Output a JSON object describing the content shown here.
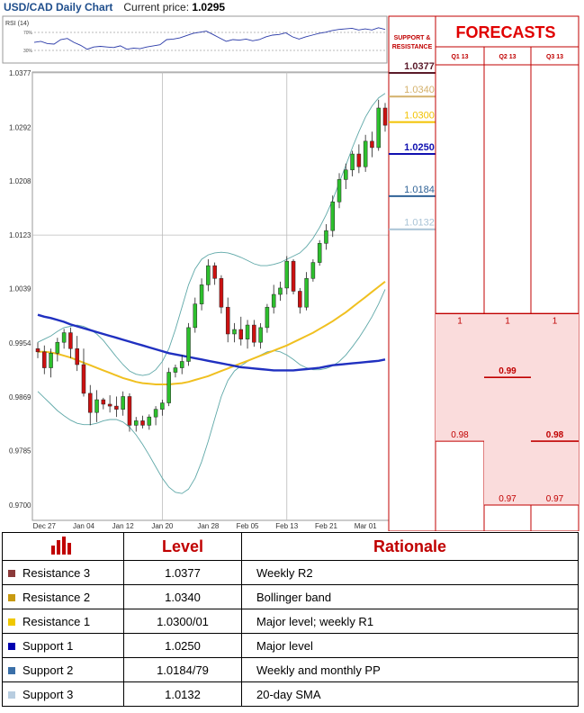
{
  "header": {
    "pair_title": "USD/CAD Daily Chart",
    "current_price_label": "Current price:",
    "current_price": "1.0295"
  },
  "chart_data": {
    "type": "candlestick",
    "title": "USD/CAD Daily Chart",
    "y_ticks": [
      "1.0377",
      "1.0292",
      "1.0208",
      "1.0123",
      "1.0039",
      "0.9954",
      "0.9869",
      "0.9785",
      "0.9700"
    ],
    "ylim": [
      0.97,
      1.0377
    ],
    "x_ticks": [
      "Dec 27",
      "Jan 04",
      "Jan 12",
      "Jan 20",
      "Jan 28",
      "Feb 05",
      "Feb 13",
      "Feb 21",
      "Mar 01"
    ],
    "grid": true,
    "candles": [
      {
        "o": 0.9945,
        "h": 0.9955,
        "l": 0.993,
        "c": 0.994
      },
      {
        "o": 0.994,
        "h": 0.995,
        "l": 0.9905,
        "c": 0.9915
      },
      {
        "o": 0.9915,
        "h": 0.9945,
        "l": 0.99,
        "c": 0.9938
      },
      {
        "o": 0.9938,
        "h": 0.9962,
        "l": 0.9925,
        "c": 0.9955
      },
      {
        "o": 0.9955,
        "h": 0.9976,
        "l": 0.9945,
        "c": 0.997
      },
      {
        "o": 0.997,
        "h": 0.9978,
        "l": 0.993,
        "c": 0.9945
      },
      {
        "o": 0.9945,
        "h": 0.9965,
        "l": 0.991,
        "c": 0.992
      },
      {
        "o": 0.992,
        "h": 0.9945,
        "l": 0.987,
        "c": 0.9875
      },
      {
        "o": 0.9875,
        "h": 0.9888,
        "l": 0.9825,
        "c": 0.9845
      },
      {
        "o": 0.9845,
        "h": 0.988,
        "l": 0.983,
        "c": 0.9865
      },
      {
        "o": 0.9865,
        "h": 0.9868,
        "l": 0.985,
        "c": 0.9858
      },
      {
        "o": 0.9858,
        "h": 0.9872,
        "l": 0.9845,
        "c": 0.9855
      },
      {
        "o": 0.9855,
        "h": 0.987,
        "l": 0.9838,
        "c": 0.985
      },
      {
        "o": 0.985,
        "h": 0.9878,
        "l": 0.984,
        "c": 0.987
      },
      {
        "o": 0.987,
        "h": 0.9875,
        "l": 0.9815,
        "c": 0.9825
      },
      {
        "o": 0.9825,
        "h": 0.9838,
        "l": 0.9815,
        "c": 0.9832
      },
      {
        "o": 0.9832,
        "h": 0.984,
        "l": 0.982,
        "c": 0.9825
      },
      {
        "o": 0.9825,
        "h": 0.9842,
        "l": 0.9818,
        "c": 0.9838
      },
      {
        "o": 0.9838,
        "h": 0.9855,
        "l": 0.9825,
        "c": 0.985
      },
      {
        "o": 0.985,
        "h": 0.9865,
        "l": 0.984,
        "c": 0.986
      },
      {
        "o": 0.986,
        "h": 0.9915,
        "l": 0.9855,
        "c": 0.9908
      },
      {
        "o": 0.9908,
        "h": 0.992,
        "l": 0.99,
        "c": 0.9915
      },
      {
        "o": 0.9915,
        "h": 0.9935,
        "l": 0.9905,
        "c": 0.9925
      },
      {
        "o": 0.9925,
        "h": 0.9985,
        "l": 0.9918,
        "c": 0.9978
      },
      {
        "o": 0.9978,
        "h": 1.0025,
        "l": 0.997,
        "c": 1.0015
      },
      {
        "o": 1.0015,
        "h": 1.0055,
        "l": 1.0005,
        "c": 1.0045
      },
      {
        "o": 1.0045,
        "h": 1.0085,
        "l": 1.0035,
        "c": 1.0075
      },
      {
        "o": 1.0075,
        "h": 1.008,
        "l": 1.0045,
        "c": 1.0055
      },
      {
        "o": 1.0055,
        "h": 1.006,
        "l": 1.0,
        "c": 1.001
      },
      {
        "o": 1.001,
        "h": 1.0025,
        "l": 0.9955,
        "c": 0.9968
      },
      {
        "o": 0.9968,
        "h": 0.9985,
        "l": 0.9955,
        "c": 0.9975
      },
      {
        "o": 0.9975,
        "h": 0.9995,
        "l": 0.995,
        "c": 0.996
      },
      {
        "o": 0.996,
        "h": 0.999,
        "l": 0.9945,
        "c": 0.9982
      },
      {
        "o": 0.9982,
        "h": 0.999,
        "l": 0.9948,
        "c": 0.9955
      },
      {
        "o": 0.9955,
        "h": 0.9985,
        "l": 0.9945,
        "c": 0.9978
      },
      {
        "o": 0.9978,
        "h": 1.0015,
        "l": 0.997,
        "c": 1.001
      },
      {
        "o": 1.001,
        "h": 1.0045,
        "l": 1.0,
        "c": 1.003
      },
      {
        "o": 1.003,
        "h": 1.005,
        "l": 1.002,
        "c": 1.004
      },
      {
        "o": 1.004,
        "h": 1.009,
        "l": 1.003,
        "c": 1.0082
      },
      {
        "o": 1.0082,
        "h": 1.0085,
        "l": 1.003,
        "c": 1.0035
      },
      {
        "o": 1.0035,
        "h": 1.004,
        "l": 1.0,
        "c": 1.001
      },
      {
        "o": 1.001,
        "h": 1.0065,
        "l": 1.0005,
        "c": 1.0055
      },
      {
        "o": 1.0055,
        "h": 1.0085,
        "l": 1.005,
        "c": 1.008
      },
      {
        "o": 1.008,
        "h": 1.0115,
        "l": 1.0075,
        "c": 1.011
      },
      {
        "o": 1.011,
        "h": 1.014,
        "l": 1.01,
        "c": 1.013
      },
      {
        "o": 1.013,
        "h": 1.0185,
        "l": 1.012,
        "c": 1.0175
      },
      {
        "o": 1.0175,
        "h": 1.022,
        "l": 1.0165,
        "c": 1.021
      },
      {
        "o": 1.021,
        "h": 1.0235,
        "l": 1.0195,
        "c": 1.0225
      },
      {
        "o": 1.0225,
        "h": 1.0255,
        "l": 1.0215,
        "c": 1.025
      },
      {
        "o": 1.025,
        "h": 1.0265,
        "l": 1.022,
        "c": 1.023
      },
      {
        "o": 1.023,
        "h": 1.028,
        "l": 1.0222,
        "c": 1.027
      },
      {
        "o": 1.027,
        "h": 1.0285,
        "l": 1.0245,
        "c": 1.026
      },
      {
        "o": 1.026,
        "h": 1.0335,
        "l": 1.0255,
        "c": 1.0322
      },
      {
        "o": 1.0322,
        "h": 1.033,
        "l": 1.0285,
        "c": 1.0295
      }
    ],
    "sma_long": [
      0.9998,
      0.9995,
      0.9993,
      0.999,
      0.9987,
      0.9983,
      0.998,
      0.9977,
      0.9974,
      0.9971,
      0.9968,
      0.9965,
      0.9962,
      0.9959,
      0.9956,
      0.9953,
      0.995,
      0.9947,
      0.9944,
      0.9941,
      0.9938,
      0.9936,
      0.9934,
      0.9932,
      0.993,
      0.9928,
      0.9926,
      0.9924,
      0.9922,
      0.992,
      0.9918,
      0.9916,
      0.9915,
      0.9914,
      0.9913,
      0.9912,
      0.9911,
      0.9911,
      0.9911,
      0.9911,
      0.9912,
      0.9913,
      0.9914,
      0.9915,
      0.9917,
      0.9919,
      0.992,
      0.9921,
      0.9922,
      0.9923,
      0.9924,
      0.9925,
      0.9926,
      0.9928
    ],
    "sma_mid": [
      0.994,
      0.994,
      0.9939,
      0.9937,
      0.9934,
      0.9931,
      0.9927,
      0.9923,
      0.9919,
      0.9915,
      0.9911,
      0.9907,
      0.9903,
      0.9899,
      0.9896,
      0.9893,
      0.9891,
      0.989,
      0.9889,
      0.9889,
      0.9889,
      0.989,
      0.9891,
      0.9893,
      0.9896,
      0.9899,
      0.9902,
      0.9906,
      0.991,
      0.9914,
      0.9918,
      0.9922,
      0.9926,
      0.993,
      0.9934,
      0.9938,
      0.9942,
      0.9946,
      0.995,
      0.9955,
      0.996,
      0.9965,
      0.997,
      0.9976,
      0.9982,
      0.9988,
      0.9995,
      1.0002,
      1.001,
      1.0018,
      1.0026,
      1.0034,
      1.0042,
      1.005
    ],
    "bb_upper": [
      0.9955,
      0.996,
      0.9965,
      0.9972,
      0.9978,
      0.998,
      0.9982,
      0.998,
      0.9975,
      0.9968,
      0.9958,
      0.9945,
      0.9932,
      0.992,
      0.991,
      0.9905,
      0.9903,
      0.9905,
      0.9912,
      0.9925,
      0.9945,
      0.9975,
      1.001,
      1.0045,
      1.007,
      1.0085,
      1.0092,
      1.0095,
      1.0096,
      1.0095,
      1.0092,
      1.0088,
      1.0083,
      1.0078,
      1.0075,
      1.0075,
      1.0077,
      1.008,
      1.0085,
      1.009,
      1.0095,
      1.0105,
      1.0118,
      1.0135,
      1.0155,
      1.0178,
      1.0205,
      1.0232,
      1.026,
      1.0285,
      1.0308,
      1.0325,
      1.0338,
      1.0345
    ],
    "bb_lower": [
      0.9878,
      0.9868,
      0.9858,
      0.9848,
      0.984,
      0.9833,
      0.9828,
      0.9826,
      0.9826,
      0.9828,
      0.9832,
      0.9834,
      0.9834,
      0.983,
      0.9822,
      0.981,
      0.9795,
      0.9778,
      0.976,
      0.9742,
      0.9728,
      0.972,
      0.9718,
      0.9725,
      0.9742,
      0.9768,
      0.98,
      0.9835,
      0.987,
      0.9895,
      0.991,
      0.9918,
      0.9925,
      0.993,
      0.9935,
      0.994,
      0.9942,
      0.994,
      0.9935,
      0.9928,
      0.992,
      0.9915,
      0.9912,
      0.9912,
      0.9914,
      0.9918,
      0.9925,
      0.9935,
      0.9948,
      0.9962,
      0.9978,
      0.9995,
      1.0015,
      1.0038
    ],
    "rsi": [
      50,
      52,
      48,
      47,
      55,
      57,
      50,
      45,
      38,
      42,
      43,
      42,
      41,
      44,
      38,
      40,
      39,
      42,
      44,
      46,
      55,
      56,
      58,
      62,
      66,
      68,
      70,
      64,
      58,
      52,
      55,
      54,
      56,
      53,
      55,
      60,
      63,
      64,
      67,
      60,
      56,
      60,
      63,
      66,
      68,
      71,
      73,
      74,
      75,
      72,
      74,
      72,
      76,
      73
    ],
    "rsi_levels": [
      "70%",
      "30%"
    ]
  },
  "rsi_panel": {
    "label": "RSI (14)",
    "level_70": "70%",
    "level_30": "30%"
  },
  "support_resistance": {
    "header": "SUPPORT & RESISTANCE",
    "levels": [
      {
        "value": "1.0377",
        "color": "#5a1a2a",
        "bold": true
      },
      {
        "value": "1.0340",
        "color": "#d4b06a",
        "bold": false
      },
      {
        "value": "1.0300",
        "color": "#f2c200",
        "bold": false
      },
      {
        "value": "1.0250",
        "color": "#1010b0",
        "bold": true
      },
      {
        "value": "1.0184",
        "color": "#2f6296",
        "bold": false
      },
      {
        "value": "1.0132",
        "color": "#a9c3d6",
        "bold": false
      }
    ],
    "current_marker": "1"
  },
  "forecasts": {
    "title": "FORECASTS",
    "columns": [
      {
        "label": "Q1 13",
        "top": "1",
        "bottom": "0.98"
      },
      {
        "label": "Q2 13",
        "top": "1",
        "mid": "0.99",
        "bottom": "0.97"
      },
      {
        "label": "Q3 13",
        "top": "1",
        "mid": "0.98",
        "bottom": "0.97"
      }
    ]
  },
  "levels_table": {
    "headers": {
      "level": "Level",
      "rationale": "Rationale"
    },
    "rows": [
      {
        "name": "Resistance 3",
        "level": "1.0377",
        "rationale": "Weekly R2",
        "color": "#8b3a3a"
      },
      {
        "name": "Resistance 2",
        "level": "1.0340",
        "rationale": "Bollinger band",
        "color": "#c89a10"
      },
      {
        "name": "Resistance 1",
        "level": "1.0300/01",
        "rationale": "Major level; weekly R1",
        "color": "#f0c800"
      },
      {
        "name": "Support 1",
        "level": "1.0250",
        "rationale": "Major level",
        "color": "#0000b0"
      },
      {
        "name": "Support 2",
        "level": "1.0184/79",
        "rationale": "Weekly and monthly PP",
        "color": "#3a6fa8"
      },
      {
        "name": "Support 3",
        "level": "1.0132",
        "rationale": "20-day SMA",
        "color": "#b8cde0"
      }
    ]
  },
  "colors": {
    "accent": "#c00000",
    "up": "#2dc02d",
    "down": "#cc1111",
    "sma_long": "#2030c0",
    "sma_mid": "#f0c020",
    "bb": "#5fa8a8",
    "grid": "#bbbbbb"
  }
}
